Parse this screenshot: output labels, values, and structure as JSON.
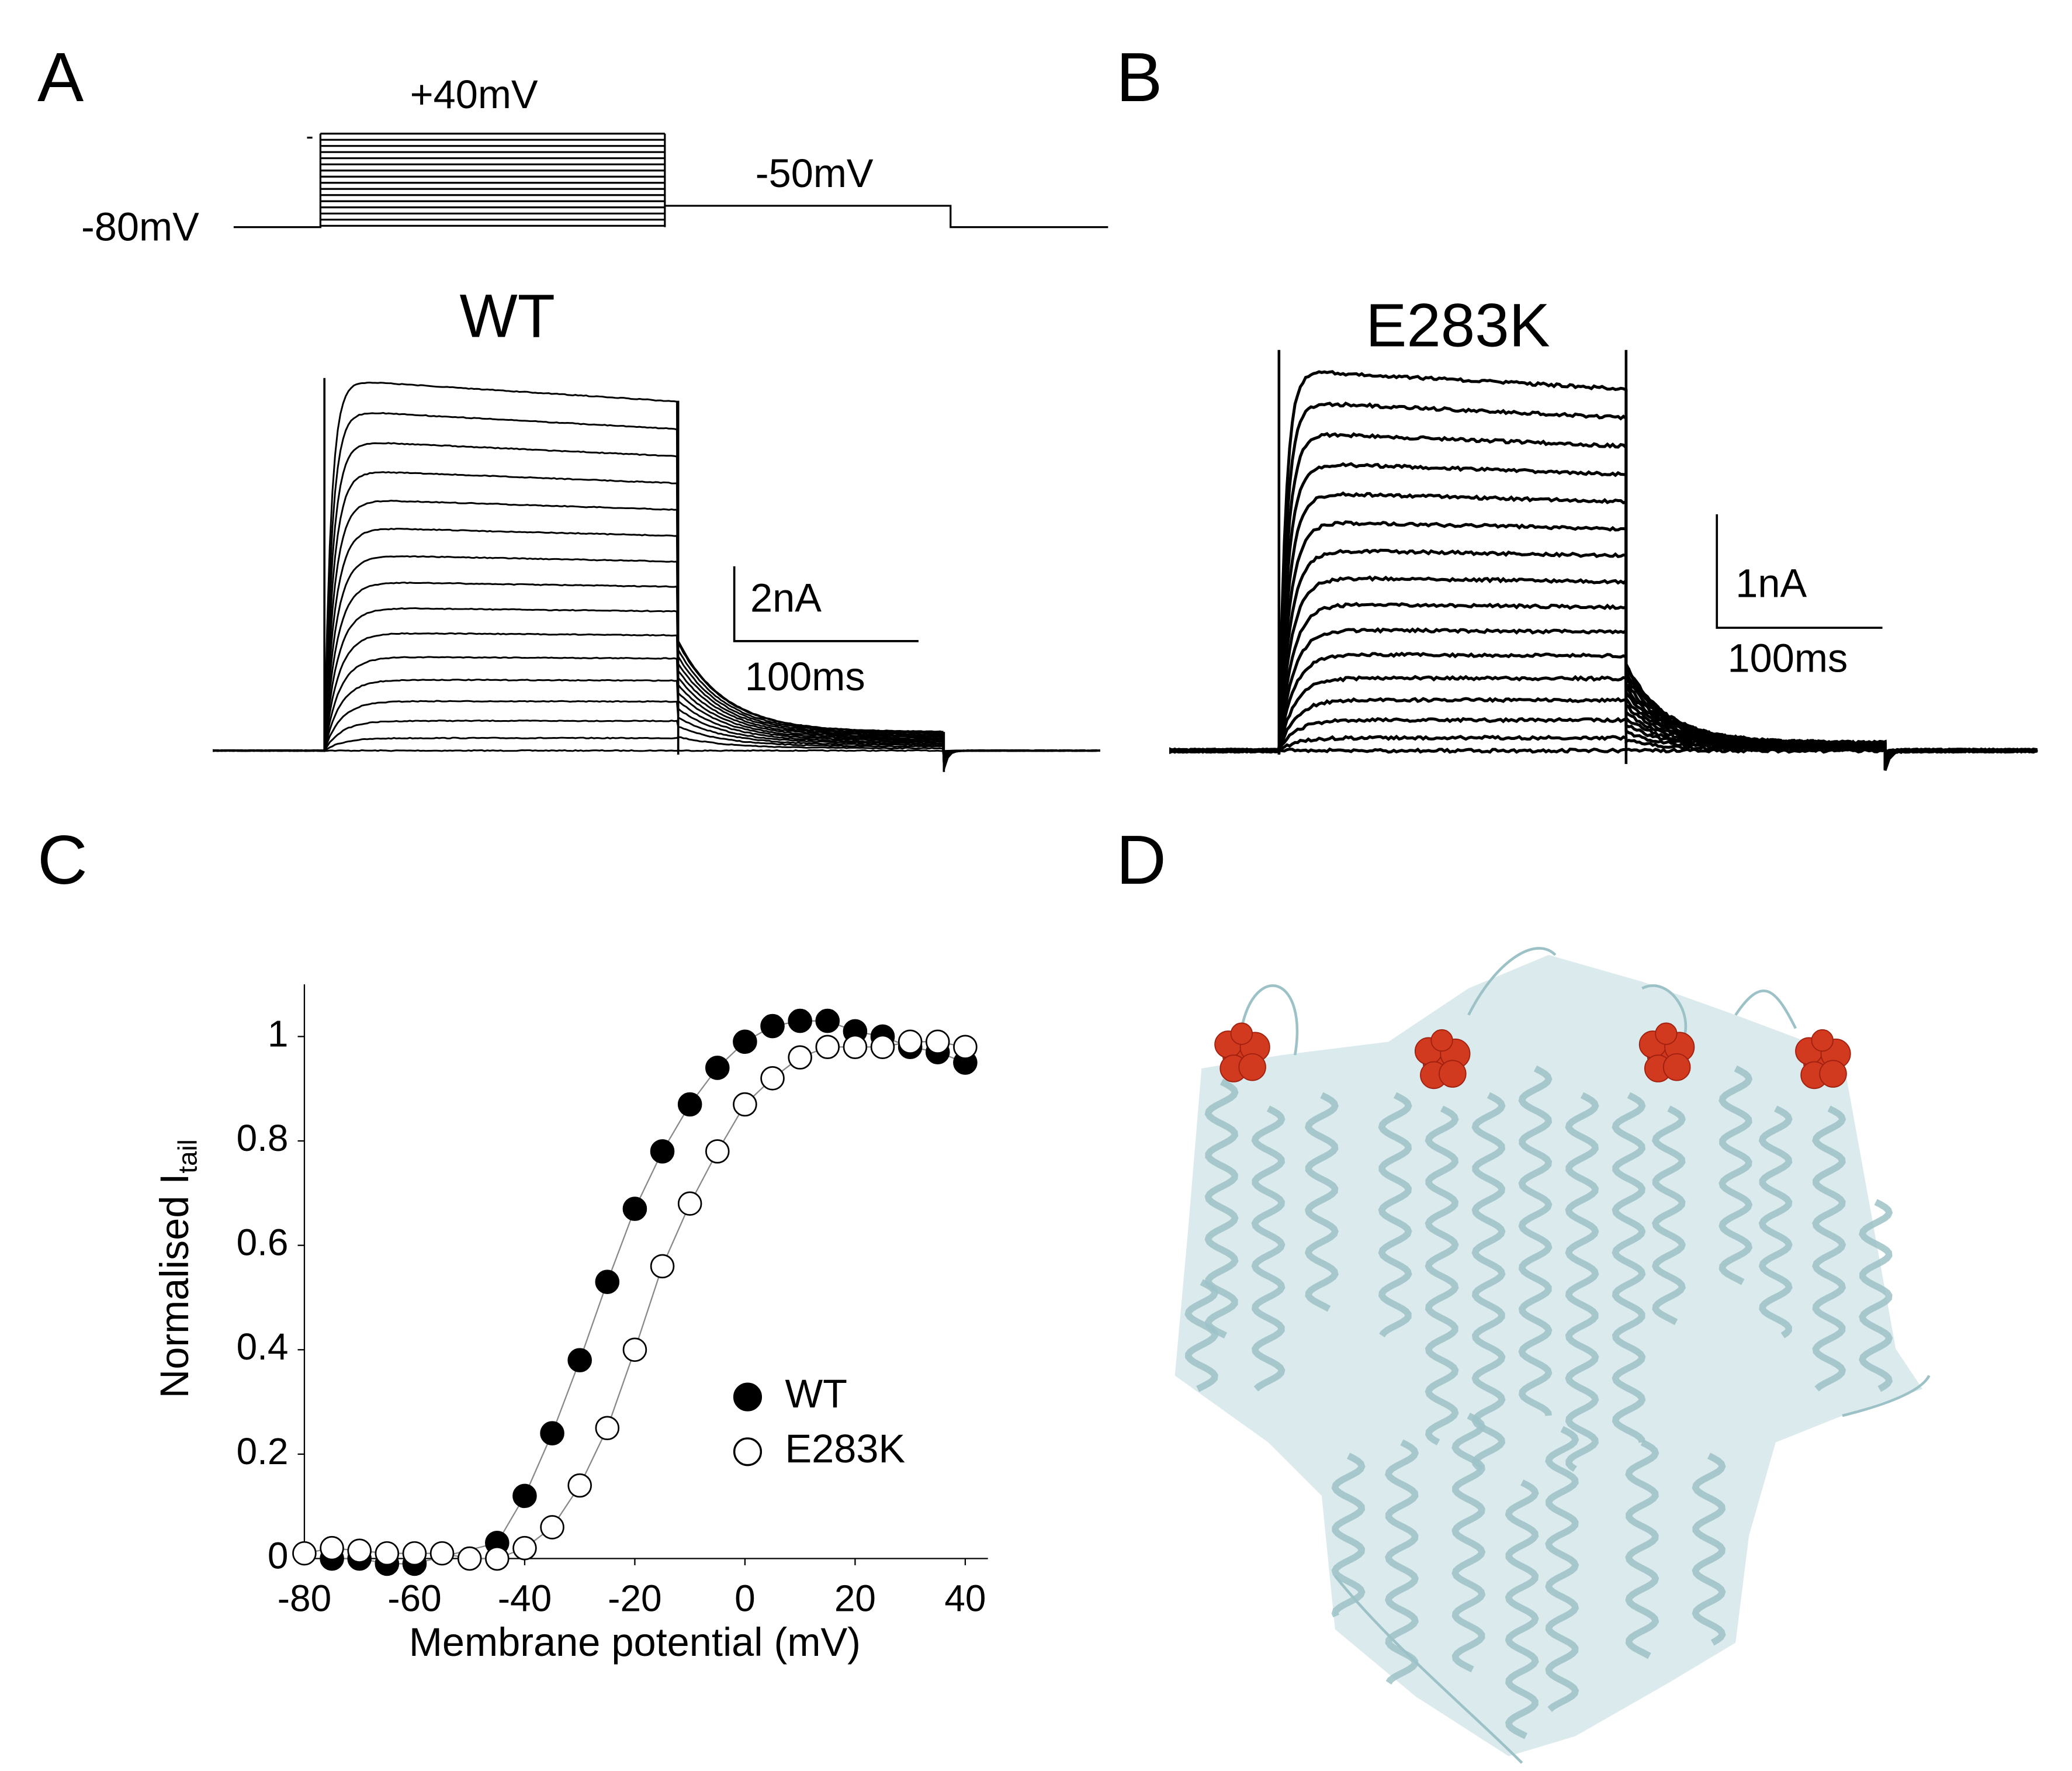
{
  "panels": {
    "A": {
      "label": "A",
      "step_label": "+40mV",
      "tail_label": "-50mV",
      "hold_label": "-80mV",
      "title": "WT",
      "scale_y": "2nA",
      "scale_x": "100ms"
    },
    "B": {
      "label": "B",
      "title": "E283K",
      "scale_y": "1nA",
      "scale_x": "100ms"
    },
    "C": {
      "label": "C"
    },
    "D": {
      "label": "D"
    }
  },
  "chart_data": {
    "type": "scatter",
    "x_label": "Membrane potential (mV)",
    "y_label": {
      "text": "Normalised I",
      "subscript": "tail"
    },
    "xlim": [
      -80,
      40
    ],
    "ylim": [
      0,
      1.1
    ],
    "xticks": [
      -80,
      -60,
      -40,
      -20,
      0,
      20,
      40
    ],
    "yticks": [
      0,
      0.2,
      0.4,
      0.6,
      0.8,
      1
    ],
    "series": [
      {
        "name": "WT",
        "color": "#000000",
        "filled": true,
        "x": [
          -75,
          -70,
          -65,
          -60,
          -45,
          -40,
          -35,
          -30,
          -25,
          -20,
          -15,
          -10,
          -5,
          0,
          5,
          10,
          15,
          20,
          25,
          30,
          35,
          40
        ],
        "values": [
          0.0,
          0.0,
          -0.01,
          -0.01,
          0.03,
          0.12,
          0.24,
          0.38,
          0.53,
          0.67,
          0.78,
          0.87,
          0.94,
          0.99,
          1.02,
          1.03,
          1.03,
          1.01,
          1.0,
          0.98,
          0.97,
          0.95
        ]
      },
      {
        "name": "E283K",
        "color": "#000000",
        "filled": false,
        "x": [
          -80,
          -75,
          -70,
          -65,
          -60,
          -55,
          -50,
          -45,
          -40,
          -35,
          -30,
          -25,
          -20,
          -15,
          -10,
          -5,
          0,
          5,
          10,
          15,
          20,
          25,
          30,
          35,
          40
        ],
        "values": [
          0.01,
          0.02,
          0.015,
          0.01,
          0.01,
          0.01,
          0.0,
          0.0,
          0.02,
          0.06,
          0.14,
          0.25,
          0.4,
          0.56,
          0.68,
          0.78,
          0.87,
          0.92,
          0.96,
          0.98,
          0.98,
          0.98,
          0.99,
          0.99,
          0.98
        ]
      }
    ]
  }
}
